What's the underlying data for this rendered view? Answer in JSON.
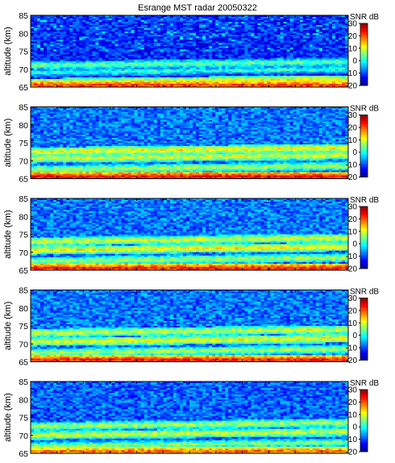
{
  "chart_data": {
    "type": "heatmap",
    "title": "Esrange MST radar 20050322",
    "panel_count": 5,
    "ylabel": "altitude (km)",
    "xlabel": "",
    "ylim": [
      65,
      85
    ],
    "yticks": [
      65,
      70,
      75,
      80,
      85
    ],
    "colorbar": {
      "label": "SNR dB",
      "range": [
        -20,
        30
      ],
      "ticks": [
        -20,
        -10,
        0,
        10,
        20,
        30
      ],
      "colormap": "jet"
    },
    "panels": [
      {
        "index": 1,
        "bands": [
          {
            "altitude_km": 65.5,
            "snr_db": 22
          },
          {
            "altitude_km": 66.2,
            "snr_db": 12
          },
          {
            "altitude_km": 69.0,
            "snr_db": 2
          },
          {
            "altitude_km": 71.0,
            "snr_db": 5
          }
        ],
        "background_snr_db": -12
      },
      {
        "index": 2,
        "bands": [
          {
            "altitude_km": 65.5,
            "snr_db": 25
          },
          {
            "altitude_km": 67.5,
            "snr_db": 8
          },
          {
            "altitude_km": 70.5,
            "snr_db": 10
          },
          {
            "altitude_km": 72.5,
            "snr_db": 12
          }
        ],
        "background_snr_db": -8
      },
      {
        "index": 3,
        "bands": [
          {
            "altitude_km": 65.5,
            "snr_db": 24
          },
          {
            "altitude_km": 67.5,
            "snr_db": 8
          },
          {
            "altitude_km": 70.5,
            "snr_db": 12
          },
          {
            "altitude_km": 73.0,
            "snr_db": 10
          }
        ],
        "background_snr_db": -8
      },
      {
        "index": 4,
        "bands": [
          {
            "altitude_km": 65.5,
            "snr_db": 24
          },
          {
            "altitude_km": 67.5,
            "snr_db": 8
          },
          {
            "altitude_km": 70.5,
            "snr_db": 12
          },
          {
            "altitude_km": 73.0,
            "snr_db": 10
          }
        ],
        "background_snr_db": -8
      },
      {
        "index": 5,
        "bands": [
          {
            "altitude_km": 65.5,
            "snr_db": 20
          },
          {
            "altitude_km": 67.0,
            "snr_db": 6
          },
          {
            "altitude_km": 70.0,
            "snr_db": 10
          },
          {
            "altitude_km": 72.5,
            "snr_db": 8
          }
        ],
        "background_snr_db": -9
      }
    ]
  }
}
